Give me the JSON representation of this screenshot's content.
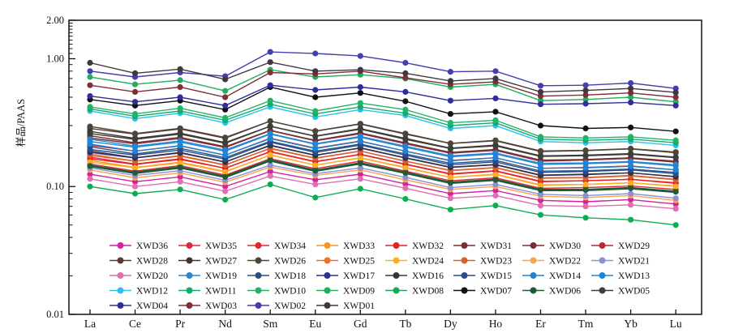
{
  "chart_data": {
    "type": "line",
    "title": "",
    "ylabel": "样品/PAAS",
    "xlabel": "",
    "y_scale": "log",
    "ylim": [
      0.01,
      2.0
    ],
    "y_ticks": [
      {
        "value": 2.0,
        "label": "2.00"
      },
      {
        "value": 1.0,
        "label": "1.00"
      },
      {
        "value": 0.1,
        "label": "0.10"
      },
      {
        "value": 0.01,
        "label": "0.01"
      }
    ],
    "grid": "off",
    "legend_position": "inside-bottom",
    "legend_columns": 8,
    "categories": [
      "La",
      "Ce",
      "Pr",
      "Nd",
      "Sm",
      "Eu",
      "Gd",
      "Tb",
      "Dy",
      "Ho",
      "Er",
      "Tm",
      "Yb",
      "Lu"
    ],
    "series": [
      {
        "name": "XWD36",
        "color": "#D6219C",
        "values": [
          0.125,
          0.109,
          0.119,
          0.1,
          0.131,
          0.113,
          0.125,
          0.105,
          0.088,
          0.093,
          0.078,
          0.076,
          0.079,
          0.073
        ]
      },
      {
        "name": "XWD35",
        "color": "#DC2A3E",
        "values": [
          0.15,
          0.132,
          0.146,
          0.123,
          0.165,
          0.138,
          0.158,
          0.132,
          0.111,
          0.117,
          0.097,
          0.098,
          0.101,
          0.095
        ]
      },
      {
        "name": "XWD34",
        "color": "#E2262C",
        "values": [
          0.17,
          0.15,
          0.165,
          0.139,
          0.187,
          0.156,
          0.179,
          0.15,
          0.126,
          0.133,
          0.11,
          0.111,
          0.114,
          0.107
        ]
      },
      {
        "name": "XWD33",
        "color": "#F79421",
        "values": [
          0.16,
          0.141,
          0.155,
          0.131,
          0.176,
          0.147,
          0.168,
          0.141,
          0.118,
          0.125,
          0.103,
          0.104,
          0.107,
          0.101
        ]
      },
      {
        "name": "XWD32",
        "color": "#EA1F26",
        "values": [
          0.165,
          0.149,
          0.163,
          0.139,
          0.188,
          0.157,
          0.178,
          0.149,
          0.125,
          0.132,
          0.109,
          0.111,
          0.114,
          0.106
        ]
      },
      {
        "name": "XWD31",
        "color": "#76302F",
        "values": [
          0.25,
          0.22,
          0.243,
          0.205,
          0.275,
          0.23,
          0.263,
          0.22,
          0.185,
          0.195,
          0.161,
          0.163,
          0.168,
          0.158
        ]
      },
      {
        "name": "XWD30",
        "color": "#7A2E35",
        "values": [
          0.24,
          0.216,
          0.238,
          0.202,
          0.274,
          0.228,
          0.259,
          0.216,
          0.182,
          0.192,
          0.158,
          0.161,
          0.166,
          0.155
        ]
      },
      {
        "name": "XWD29",
        "color": "#C0272D",
        "values": [
          0.21,
          0.189,
          0.208,
          0.176,
          0.239,
          0.2,
          0.227,
          0.189,
          0.16,
          0.168,
          0.139,
          0.141,
          0.145,
          0.135
        ]
      },
      {
        "name": "XWD28",
        "color": "#5D3A35",
        "values": [
          0.285,
          0.257,
          0.282,
          0.239,
          0.325,
          0.271,
          0.308,
          0.257,
          0.217,
          0.228,
          0.188,
          0.191,
          0.197,
          0.184
        ]
      },
      {
        "name": "XWD27",
        "color": "#42332F",
        "values": [
          0.27,
          0.238,
          0.262,
          0.221,
          0.297,
          0.248,
          0.284,
          0.238,
          0.2,
          0.211,
          0.174,
          0.176,
          0.181,
          0.17
        ]
      },
      {
        "name": "XWD26",
        "color": "#4D4637",
        "values": [
          0.295,
          0.26,
          0.286,
          0.242,
          0.325,
          0.272,
          0.31,
          0.26,
          0.218,
          0.23,
          0.19,
          0.192,
          0.198,
          0.186
        ]
      },
      {
        "name": "XWD25",
        "color": "#ED7030",
        "values": [
          0.18,
          0.158,
          0.175,
          0.148,
          0.198,
          0.166,
          0.189,
          0.158,
          0.133,
          0.14,
          0.116,
          0.117,
          0.121,
          0.113
        ]
      },
      {
        "name": "XWD24",
        "color": "#F9B023",
        "values": [
          0.155,
          0.14,
          0.153,
          0.13,
          0.177,
          0.147,
          0.167,
          0.14,
          0.118,
          0.124,
          0.102,
          0.104,
          0.107,
          0.1
        ]
      },
      {
        "name": "XWD23",
        "color": "#D2622B",
        "values": [
          0.175,
          0.158,
          0.173,
          0.147,
          0.2,
          0.167,
          0.19,
          0.158,
          0.134,
          0.141,
          0.117,
          0.118,
          0.122,
          0.114
        ]
      },
      {
        "name": "XWD22",
        "color": "#F5A54E",
        "values": [
          0.135,
          0.117,
          0.128,
          0.108,
          0.142,
          0.122,
          0.135,
          0.113,
          0.095,
          0.1,
          0.084,
          0.082,
          0.085,
          0.078
        ]
      },
      {
        "name": "XWD21",
        "color": "#8A8FD8",
        "values": [
          0.14,
          0.122,
          0.133,
          0.112,
          0.147,
          0.126,
          0.14,
          0.118,
          0.098,
          0.104,
          0.087,
          0.085,
          0.088,
          0.081
        ]
      },
      {
        "name": "XWD20",
        "color": "#E06EB0",
        "values": [
          0.115,
          0.1,
          0.109,
          0.092,
          0.121,
          0.104,
          0.115,
          0.097,
          0.081,
          0.085,
          0.071,
          0.07,
          0.072,
          0.067
        ]
      },
      {
        "name": "XWD19",
        "color": "#2E86D0",
        "values": [
          0.235,
          0.207,
          0.228,
          0.193,
          0.259,
          0.216,
          0.247,
          0.207,
          0.174,
          0.183,
          0.152,
          0.153,
          0.157,
          0.148
        ]
      },
      {
        "name": "XWD18",
        "color": "#28527E",
        "values": [
          0.205,
          0.18,
          0.199,
          0.168,
          0.226,
          0.189,
          0.215,
          0.18,
          0.152,
          0.16,
          0.132,
          0.133,
          0.137,
          0.129
        ]
      },
      {
        "name": "XWD17",
        "color": "#2B2F96",
        "values": [
          0.185,
          0.167,
          0.183,
          0.155,
          0.211,
          0.176,
          0.2,
          0.167,
          0.141,
          0.148,
          0.122,
          0.124,
          0.128,
          0.119
        ]
      },
      {
        "name": "XWD16",
        "color": "#33363E",
        "values": [
          0.19,
          0.168,
          0.185,
          0.156,
          0.209,
          0.175,
          0.201,
          0.168,
          0.142,
          0.149,
          0.123,
          0.125,
          0.128,
          0.12
        ]
      },
      {
        "name": "XWD15",
        "color": "#2C4A8C",
        "values": [
          0.195,
          0.176,
          0.193,
          0.164,
          0.222,
          0.185,
          0.211,
          0.176,
          0.148,
          0.156,
          0.129,
          0.131,
          0.135,
          0.126
        ]
      },
      {
        "name": "XWD14",
        "color": "#1B84D6",
        "values": [
          0.215,
          0.189,
          0.209,
          0.176,
          0.237,
          0.198,
          0.226,
          0.189,
          0.159,
          0.168,
          0.139,
          0.14,
          0.144,
          0.135
        ]
      },
      {
        "name": "XWD13",
        "color": "#1E86D8",
        "values": [
          0.225,
          0.203,
          0.223,
          0.189,
          0.257,
          0.214,
          0.243,
          0.203,
          0.171,
          0.18,
          0.149,
          0.151,
          0.155,
          0.145
        ]
      },
      {
        "name": "XWD12",
        "color": "#26C2F0",
        "values": [
          0.39,
          0.34,
          0.375,
          0.315,
          0.42,
          0.35,
          0.4,
          0.36,
          0.285,
          0.3,
          0.225,
          0.22,
          0.225,
          0.21
        ]
      },
      {
        "name": "XWD11",
        "color": "#16A96C",
        "values": [
          0.405,
          0.355,
          0.39,
          0.33,
          0.44,
          0.37,
          0.42,
          0.375,
          0.3,
          0.315,
          0.235,
          0.23,
          0.235,
          0.22
        ]
      },
      {
        "name": "XWD10",
        "color": "#21B369",
        "values": [
          0.42,
          0.37,
          0.41,
          0.345,
          0.47,
          0.39,
          0.45,
          0.4,
          0.315,
          0.33,
          0.245,
          0.24,
          0.245,
          0.23
        ]
      },
      {
        "name": "XWD09",
        "color": "#22AE5B",
        "values": [
          0.72,
          0.63,
          0.68,
          0.56,
          0.82,
          0.72,
          0.75,
          0.7,
          0.6,
          0.63,
          0.47,
          0.48,
          0.5,
          0.46
        ]
      },
      {
        "name": "XWD08",
        "color": "#0FAD53",
        "values": [
          0.1,
          0.088,
          0.095,
          0.079,
          0.104,
          0.082,
          0.096,
          0.08,
          0.066,
          0.071,
          0.06,
          0.057,
          0.055,
          0.05
        ]
      },
      {
        "name": "XWD07",
        "color": "#111111",
        "values": [
          0.48,
          0.43,
          0.47,
          0.4,
          0.6,
          0.5,
          0.54,
          0.465,
          0.37,
          0.385,
          0.3,
          0.285,
          0.29,
          0.27
        ]
      },
      {
        "name": "XWD06",
        "color": "#1E5C38",
        "values": [
          0.145,
          0.128,
          0.141,
          0.119,
          0.16,
          0.133,
          0.152,
          0.128,
          0.107,
          0.113,
          0.094,
          0.094,
          0.097,
          0.091
        ],
        "thick": true
      },
      {
        "name": "XWD05",
        "color": "#37413A",
        "values": [
          0.26,
          0.234,
          0.257,
          0.218,
          0.296,
          0.247,
          0.281,
          0.234,
          0.198,
          0.208,
          0.172,
          0.174,
          0.179,
          0.168
        ]
      },
      {
        "name": "XWD04",
        "color": "#2F2E9C",
        "values": [
          0.51,
          0.46,
          0.5,
          0.43,
          0.62,
          0.57,
          0.6,
          0.55,
          0.47,
          0.49,
          0.44,
          0.445,
          0.455,
          0.43
        ]
      },
      {
        "name": "XWD03",
        "color": "#7E3038",
        "values": [
          0.62,
          0.55,
          0.6,
          0.5,
          0.78,
          0.76,
          0.8,
          0.71,
          0.63,
          0.66,
          0.51,
          0.52,
          0.54,
          0.5
        ]
      },
      {
        "name": "XWD02",
        "color": "#453EB0",
        "values": [
          0.8,
          0.72,
          0.78,
          0.73,
          1.13,
          1.1,
          1.05,
          0.93,
          0.79,
          0.8,
          0.615,
          0.62,
          0.645,
          0.585
        ]
      },
      {
        "name": "XWD01",
        "color": "#423741",
        "values": [
          0.93,
          0.77,
          0.83,
          0.69,
          0.94,
          0.8,
          0.82,
          0.77,
          0.67,
          0.7,
          0.55,
          0.565,
          0.585,
          0.545
        ]
      }
    ]
  }
}
